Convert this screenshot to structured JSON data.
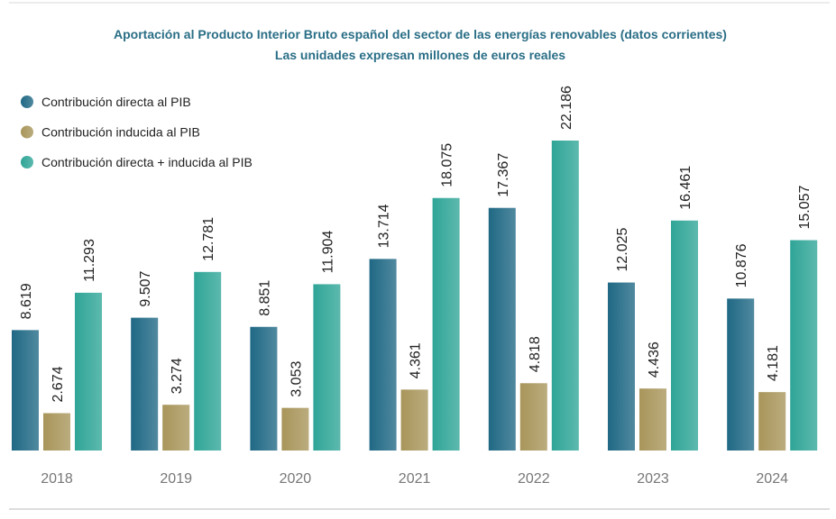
{
  "chart_data": {
    "type": "bar",
    "title": "Aportación al Producto Interior Bruto español del sector de las energías renovables (datos corrientes)",
    "subtitle": "Las unidades expresan millones de euros reales",
    "categories": [
      "2018",
      "2019",
      "2020",
      "2021",
      "2022",
      "2023",
      "2024"
    ],
    "series": [
      {
        "name": "Contribución directa al PIB",
        "color": "#1f6884",
        "values": [
          8619,
          9507,
          8851,
          13714,
          17367,
          12025,
          10876
        ],
        "value_labels": [
          "8.619",
          "9.507",
          "8.851",
          "13.714",
          "17.367",
          "12.025",
          "10.876"
        ]
      },
      {
        "name": "Contribución inducida al PIB",
        "color": "#a8955a",
        "values": [
          2674,
          3274,
          3053,
          4361,
          4818,
          4436,
          4181
        ],
        "value_labels": [
          "2.674",
          "3.274",
          "3.053",
          "4.361",
          "4.818",
          "4.436",
          "4.181"
        ]
      },
      {
        "name": "Contribución directa + inducida al PIB",
        "color": "#2fa597",
        "values": [
          11293,
          12781,
          11904,
          18075,
          22186,
          16461,
          15057
        ],
        "value_labels": [
          "11.293",
          "12.781",
          "11.904",
          "18.075",
          "22.186",
          "16.461",
          "15.057"
        ]
      }
    ]
  }
}
